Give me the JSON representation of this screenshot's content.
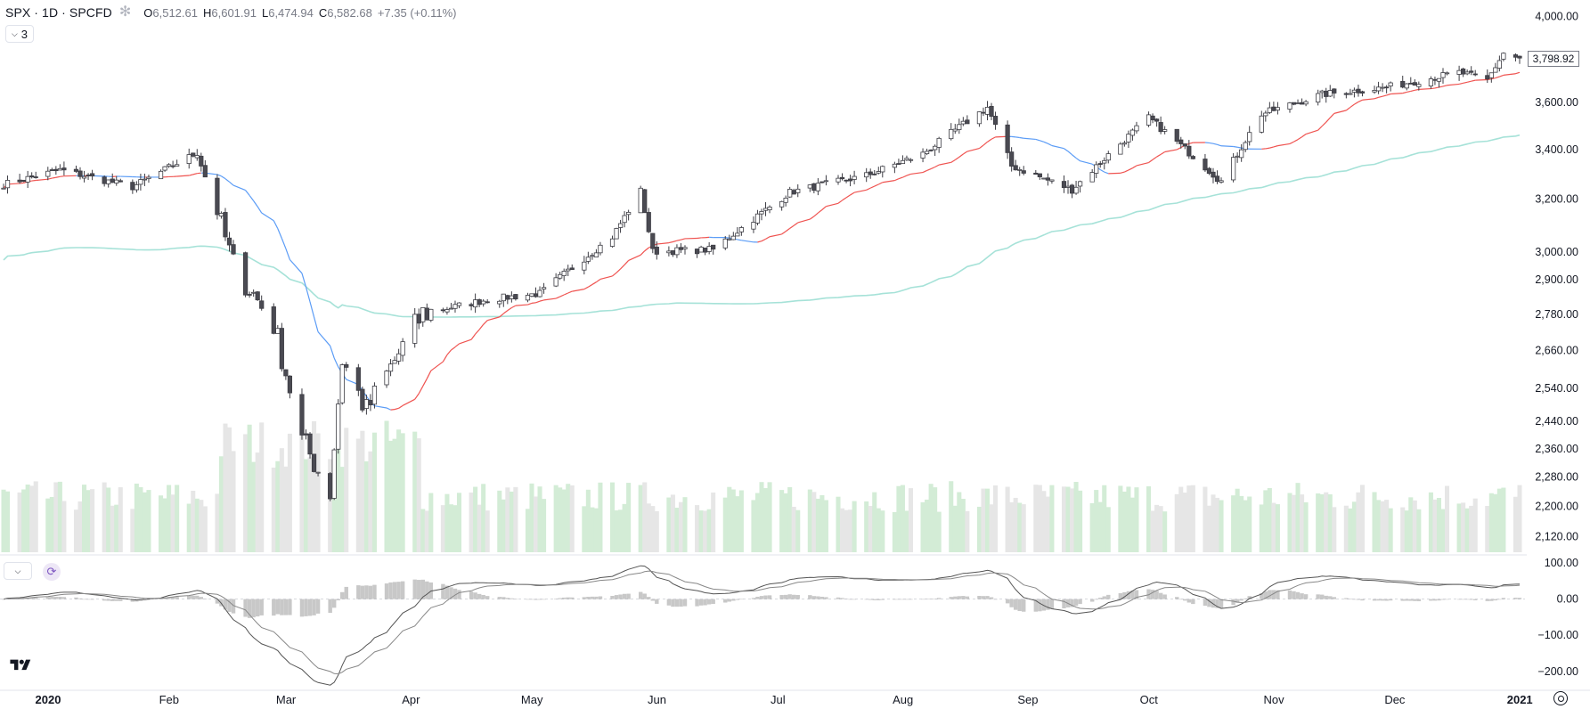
{
  "header": {
    "symbol_line": "SPX · 1D · SPCFD",
    "market_status_icon": "asterisk-icon",
    "open_key": "O",
    "open_value": "6,512.61",
    "high_key": "H",
    "high_value": "6,601.91",
    "low_key": "L",
    "low_value": "6,474.94",
    "close_key": "C",
    "close_value": "6,582.68",
    "change": "+7.35 (+0.11%)"
  },
  "indicators_toggle": {
    "icon": "chevron-down-icon",
    "count": "3"
  },
  "main_pane": {
    "price_axis_labels": [
      "4,000.00",
      "3,600.00",
      "3,400.00",
      "3,200.00",
      "3,000.00",
      "2,900.00",
      "2,780.00",
      "2,660.00",
      "2,540.00",
      "2,440.00",
      "2,360.00",
      "2,280.00",
      "2,200.00",
      "2,120.00"
    ],
    "last_price_tag": "3,798.92"
  },
  "macd_pane": {
    "axis_labels": [
      "100.00",
      "0.00",
      "−100.00",
      "−200.00"
    ],
    "collapse_icon": "chevron-down-icon",
    "sync_icon": "refresh-icon"
  },
  "time_axis": {
    "labels": [
      "2020",
      "Feb",
      "Mar",
      "Apr",
      "May",
      "Jun",
      "Jul",
      "Aug",
      "Sep",
      "Oct",
      "Nov",
      "Dec",
      "2021"
    ]
  },
  "footer": {
    "logo": "tradingview-logo",
    "settings_icon": "gear-icon"
  },
  "colors": {
    "candle_down": "#4a4a52",
    "candle_up_fill": "#ffffff",
    "candle_outline": "#3d3d44",
    "sma_short": "#ef5350",
    "sma_short_alt": "#5b9cf6",
    "sma_long": "#a6e2d8",
    "volume_up": "#d3ecd6",
    "volume_down": "#e6e6e6",
    "macd_line": "#555555",
    "signal_line": "#888888",
    "histogram": "#c8c8c8"
  },
  "chart_data": {
    "type": "line",
    "title": "SPX · 1D · SPCFD",
    "description_series": "Daily candlesticks Jan 2020 – Jan 2021 with two moving averages, volume and MACD",
    "x": [
      "2020-01-02",
      "2020-01-16",
      "2020-02-03",
      "2020-02-19",
      "2020-02-28",
      "2020-03-09",
      "2020-03-16",
      "2020-03-23",
      "2020-03-26",
      "2020-04-01",
      "2020-04-15",
      "2020-05-01",
      "2020-05-14",
      "2020-06-01",
      "2020-06-08",
      "2020-06-11",
      "2020-06-26",
      "2020-07-15",
      "2020-08-03",
      "2020-08-17",
      "2020-09-02",
      "2020-09-08",
      "2020-09-23",
      "2020-10-12",
      "2020-10-30",
      "2020-11-09",
      "2020-11-24",
      "2020-12-10",
      "2020-12-28",
      "2021-01-04",
      "2021-01-08",
      "2021-01-12"
    ],
    "close": [
      3258,
      3316,
      3248,
      3386,
      2954,
      2746,
      2386,
      2237,
      2630,
      2471,
      2783,
      2831,
      2852,
      3056,
      3232,
      3002,
      3009,
      3227,
      3294,
      3382,
      3580,
      3332,
      3237,
      3534,
      3270,
      3550,
      3636,
      3668,
      3735,
      3700,
      3824,
      3799
    ],
    "ylim": [
      2080,
      4010
    ],
    "price_scale": "log",
    "macd_range": [
      -240,
      110
    ]
  }
}
